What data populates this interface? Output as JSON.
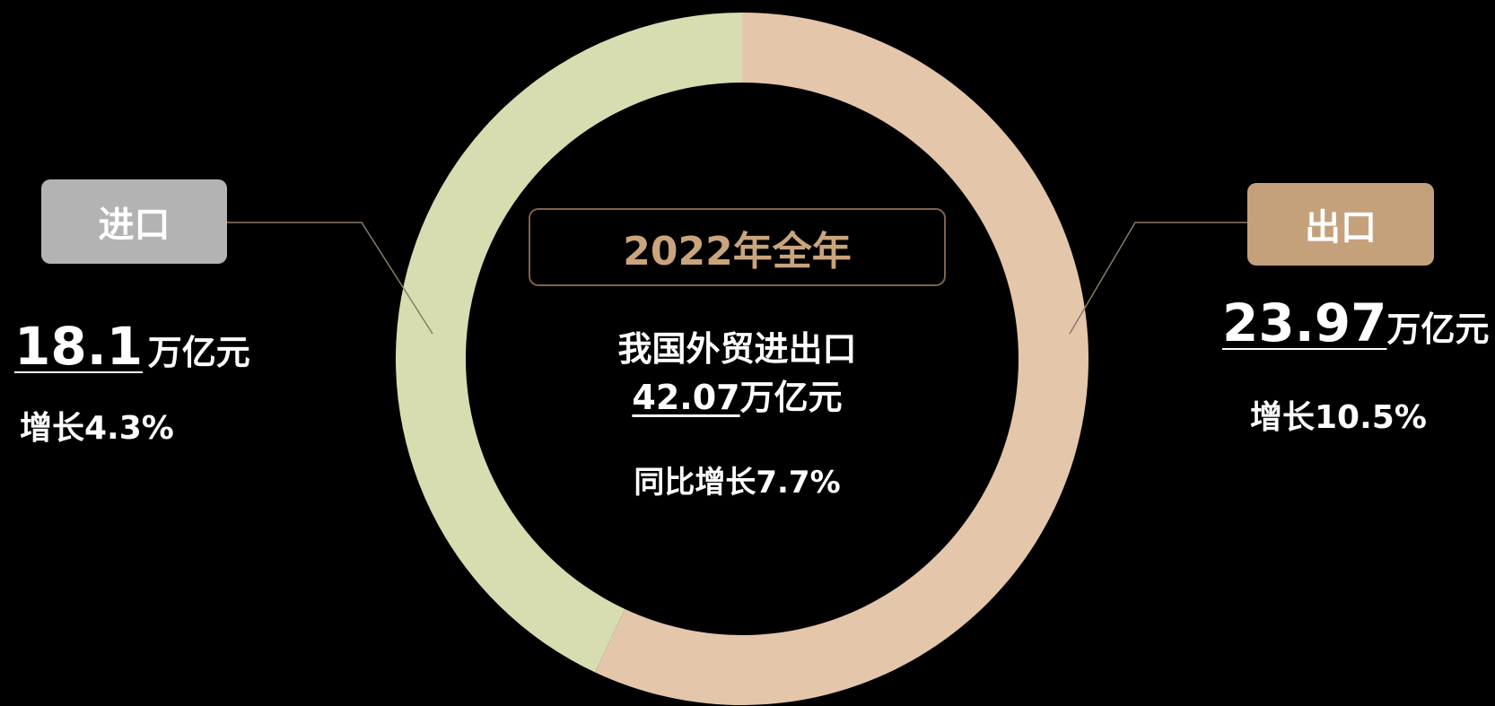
{
  "chart_data": {
    "type": "pie",
    "categories": [
      "进口",
      "出口"
    ],
    "values": [
      18.1,
      23.97
    ],
    "colors": [
      "#d7ddb0",
      "#e4c6ab"
    ],
    "badge_colors": [
      "#b3b3b3",
      "#c5a17b"
    ],
    "unit": "万亿元",
    "growth_labels": [
      "增长4.3%",
      "增长10.5%"
    ],
    "center": {
      "badge": "2022年全年",
      "title": "我国外贸进出口",
      "total": 42.07,
      "growth": "同比增长7.7%"
    }
  }
}
